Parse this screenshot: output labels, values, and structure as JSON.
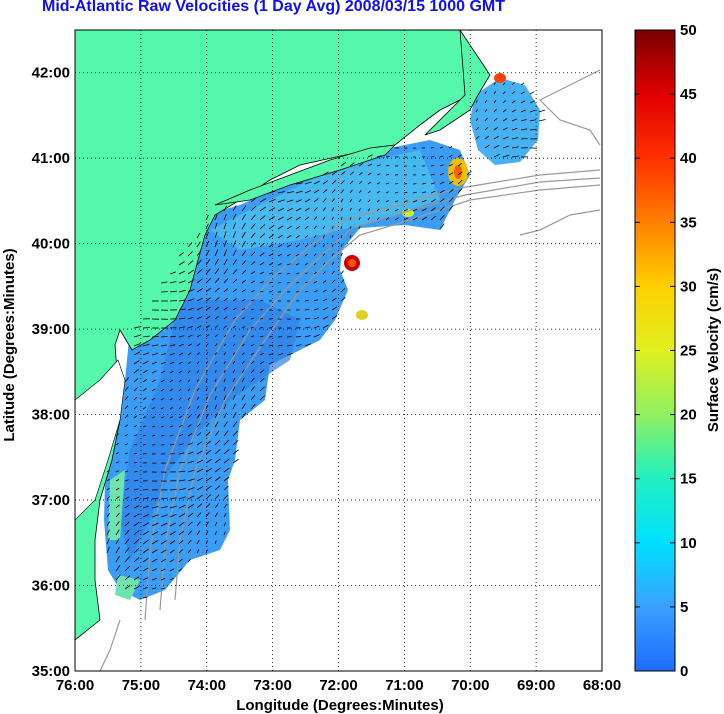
{
  "title": "Mid-Atlantic Raw Velocities (1 Day Avg) 2008/03/15 1000 GMT",
  "map": {
    "xlabel": "Longitude (Degrees:Minutes)",
    "ylabel": "Latitude (Degrees:Minutes)",
    "x_ticks": [
      "76:00",
      "75:00",
      "74:00",
      "73:00",
      "72:00",
      "71:00",
      "70:00",
      "69:00",
      "68:00"
    ],
    "y_ticks": [
      "35:00",
      "36:00",
      "37:00",
      "38:00",
      "39:00",
      "40:00",
      "41:00",
      "42:00"
    ],
    "lon_range": [
      -76,
      -68
    ],
    "lat_range": [
      35,
      42.5
    ],
    "land_color": "#55f7aa",
    "grid": "dotted"
  },
  "colorbar": {
    "label": "Surface Velocity (cm/s)",
    "min": 0,
    "max": 50,
    "ticks": [
      "0",
      "5",
      "10",
      "15",
      "20",
      "25",
      "30",
      "35",
      "40",
      "45",
      "50"
    ]
  }
}
